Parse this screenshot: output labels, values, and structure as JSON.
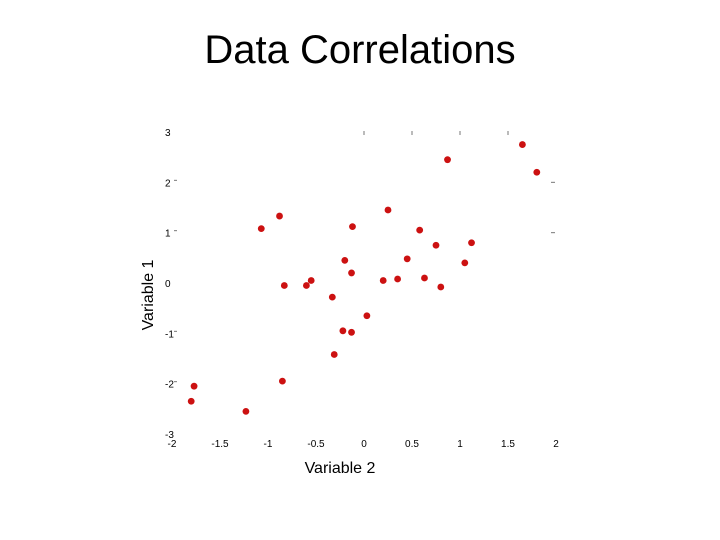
{
  "chart_data": {
    "type": "scatter",
    "title": "Data Correlations",
    "xlabel": "Variable 2",
    "ylabel": "Variable 1",
    "xlim": [
      -2,
      2
    ],
    "ylim": [
      -3,
      3
    ],
    "xticks": [
      "-2",
      "-1.5",
      "-1",
      "-0.5",
      "0",
      "0.5",
      "1",
      "1.5",
      "2"
    ],
    "yticks": [
      "3",
      "2",
      "1",
      "0",
      "-1",
      "-2",
      "-3"
    ],
    "grid": false,
    "marker_color": "#cc1111",
    "points": [
      {
        "x": 1.65,
        "y": 2.75
      },
      {
        "x": 1.8,
        "y": 2.2
      },
      {
        "x": 0.87,
        "y": 2.45
      },
      {
        "x": 0.25,
        "y": 1.45
      },
      {
        "x": -0.88,
        "y": 1.33
      },
      {
        "x": -1.07,
        "y": 1.08
      },
      {
        "x": -0.12,
        "y": 1.12
      },
      {
        "x": 0.58,
        "y": 1.05
      },
      {
        "x": 0.75,
        "y": 0.75
      },
      {
        "x": 1.12,
        "y": 0.8
      },
      {
        "x": -0.2,
        "y": 0.45
      },
      {
        "x": 0.45,
        "y": 0.48
      },
      {
        "x": 1.05,
        "y": 0.4
      },
      {
        "x": -0.13,
        "y": 0.2
      },
      {
        "x": 0.2,
        "y": 0.05
      },
      {
        "x": 0.35,
        "y": 0.08
      },
      {
        "x": 0.63,
        "y": 0.1
      },
      {
        "x": 0.8,
        "y": -0.08
      },
      {
        "x": -0.55,
        "y": 0.05
      },
      {
        "x": -0.6,
        "y": -0.05
      },
      {
        "x": -0.83,
        "y": -0.05
      },
      {
        "x": -0.33,
        "y": -0.28
      },
      {
        "x": 0.03,
        "y": -0.65
      },
      {
        "x": -0.22,
        "y": -0.95
      },
      {
        "x": -0.13,
        "y": -0.98
      },
      {
        "x": -0.31,
        "y": -1.42
      },
      {
        "x": -0.85,
        "y": -1.95
      },
      {
        "x": -1.77,
        "y": -2.05
      },
      {
        "x": -1.8,
        "y": -2.35
      },
      {
        "x": -1.23,
        "y": -2.55
      }
    ]
  }
}
